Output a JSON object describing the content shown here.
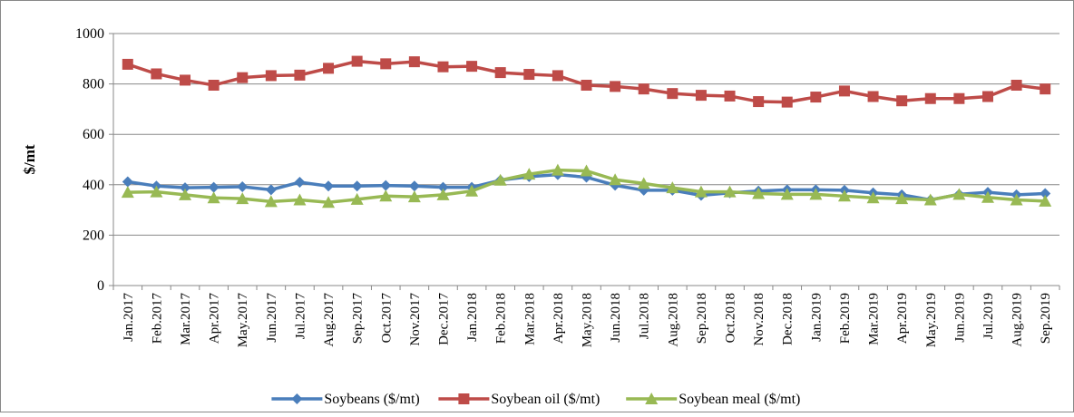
{
  "chart_data": {
    "type": "line",
    "y_label": "$/mt",
    "categories": [
      "Jan.2017",
      "Feb.2017",
      "Mar.2017",
      "Apr.2017",
      "May.2017",
      "Jun.2017",
      "Jul.2017",
      "Aug.2017",
      "Sep.2017",
      "Oct.2017",
      "Nov.2017",
      "Dec.2017",
      "Jan.2018",
      "Feb.2018",
      "Mar.2018",
      "Apr.2018",
      "May.2018",
      "Jun.2018",
      "Jul.2018",
      "Aug.2018",
      "Sep.2018",
      "Oct.2018",
      "Nov.2018",
      "Dec.2018",
      "Jan.2019",
      "Feb.2019",
      "Mar.2019",
      "Apr.2019",
      "May.2019",
      "Jun.2019",
      "Jul.2019",
      "Aug.2019",
      "Sep.2019"
    ],
    "series": [
      {
        "name": "Soybeans ($/mt)",
        "color": "#4a7ebb",
        "marker": "diamond",
        "values": [
          412,
          395,
          388,
          390,
          392,
          380,
          410,
          395,
          395,
          397,
          395,
          390,
          390,
          418,
          432,
          440,
          430,
          398,
          378,
          378,
          358,
          368,
          375,
          380,
          380,
          378,
          368,
          360,
          340,
          362,
          370,
          360,
          365
        ]
      },
      {
        "name": "Soybean oil ($/mt)",
        "color": "#be4b48",
        "marker": "square",
        "values": [
          878,
          840,
          815,
          795,
          825,
          833,
          835,
          862,
          890,
          880,
          888,
          868,
          870,
          845,
          838,
          833,
          795,
          790,
          780,
          762,
          755,
          752,
          730,
          728,
          748,
          772,
          750,
          733,
          742,
          742,
          750,
          795,
          780
        ]
      },
      {
        "name": "Soybean meal ($/mt)",
        "color": "#98b954",
        "marker": "triangle",
        "values": [
          370,
          372,
          360,
          348,
          345,
          333,
          340,
          330,
          342,
          355,
          352,
          360,
          375,
          418,
          442,
          458,
          455,
          420,
          405,
          388,
          372,
          372,
          365,
          362,
          362,
          355,
          348,
          345,
          340,
          362,
          350,
          340,
          335
        ]
      }
    ],
    "ylim": [
      0,
      1000
    ],
    "yticks": [
      0,
      200,
      400,
      600,
      800,
      1000
    ],
    "grid": true,
    "legend": "bottom"
  }
}
